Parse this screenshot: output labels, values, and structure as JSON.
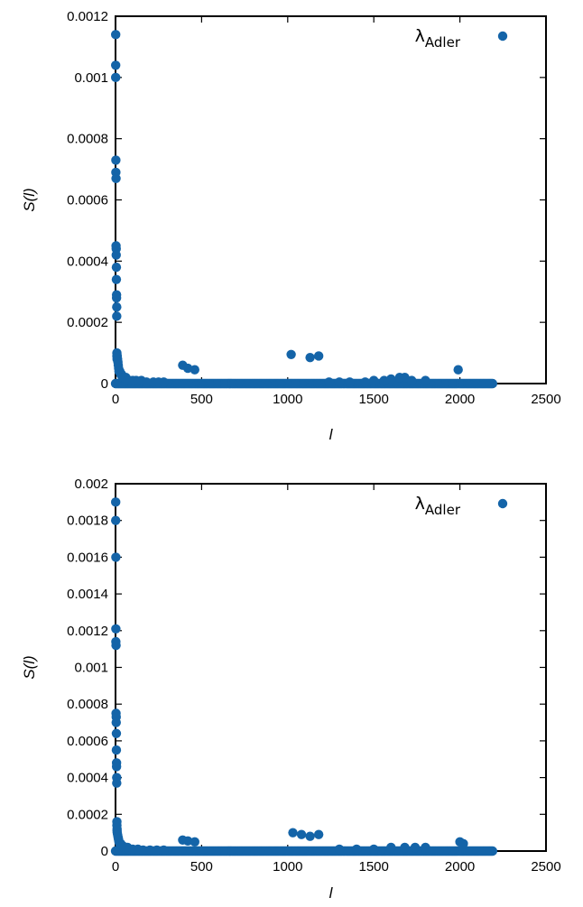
{
  "chart_data": [
    {
      "type": "scatter",
      "xlabel": "l",
      "ylabel": "S(l)",
      "xlim": [
        0,
        2500
      ],
      "ylim": [
        0,
        0.0012
      ],
      "xticks": [
        0,
        500,
        1000,
        1500,
        2000,
        2500
      ],
      "yticks": [
        0,
        0.0002,
        0.0004,
        0.0006,
        0.0008,
        0.001,
        0.0012
      ],
      "grid": false,
      "legend": "top-right",
      "color": "#1464a8",
      "series": [
        {
          "name": "λ_Adler",
          "legend_main": "λ",
          "legend_sub": "Adler",
          "peaks": {
            "x": [
              1,
              1,
              1,
              2,
              2,
              3,
              3,
              4,
              4,
              5,
              5,
              6,
              6,
              7,
              7,
              8,
              8,
              9,
              10,
              12,
              14,
              16,
              18,
              20,
              25,
              30,
              35,
              40,
              50,
              60,
              70,
              80,
              100,
              120,
              150,
              180,
              220,
              250,
              280,
              390,
              420,
              460,
              1020,
              1130,
              1180,
              1240,
              1300,
              1360,
              1450,
              1500,
              1560,
              1600,
              1650,
              1680,
              1720,
              1800,
              1990
            ],
            "y": [
              0.00114,
              0.00104,
              0.001,
              0.00073,
              0.00069,
              0.00067,
              0.00045,
              0.00044,
              0.00042,
              0.00038,
              0.00034,
              0.00029,
              0.00028,
              0.00025,
              0.00022,
              0.0001,
              9e-05,
              8e-05,
              9e-05,
              8e-05,
              7e-05,
              6e-05,
              5e-05,
              4e-05,
              4e-05,
              3e-05,
              3e-05,
              2e-05,
              2e-05,
              2e-05,
              1e-05,
              1e-05,
              1e-05,
              1e-05,
              1e-05,
              5e-06,
              5e-06,
              5e-06,
              5e-06,
              6e-05,
              5e-05,
              4.5e-05,
              9.5e-05,
              8.5e-05,
              9e-05,
              5e-06,
              5e-06,
              5e-06,
              5e-06,
              1e-05,
              1e-05,
              1.5e-05,
              2e-05,
              2e-05,
              1e-05,
              1e-05,
              4.5e-05
            ]
          },
          "baseline": {
            "y": 0,
            "x_range": [
              0,
              2190
            ]
          }
        }
      ]
    },
    {
      "type": "scatter",
      "xlabel": "l",
      "ylabel": "S(l)",
      "xlim": [
        0,
        2500
      ],
      "ylim": [
        0,
        0.002
      ],
      "xticks": [
        0,
        500,
        1000,
        1500,
        2000,
        2500
      ],
      "yticks": [
        0,
        0.0002,
        0.0004,
        0.0006,
        0.0008,
        0.001,
        0.0012,
        0.0014,
        0.0016,
        0.0018,
        0.002
      ],
      "grid": false,
      "legend": "top-right",
      "color": "#1464a8",
      "series": [
        {
          "name": "λ_Adler",
          "legend_main": "λ",
          "legend_sub": "Adler",
          "peaks": {
            "x": [
              1,
              1,
              2,
              2,
              2,
              3,
              3,
              4,
              4,
              5,
              5,
              6,
              6,
              7,
              7,
              8,
              8,
              9,
              9,
              10,
              12,
              14,
              16,
              18,
              20,
              25,
              30,
              35,
              40,
              50,
              60,
              70,
              80,
              100,
              130,
              160,
              200,
              240,
              280,
              390,
              420,
              460,
              1030,
              1080,
              1130,
              1180,
              1300,
              1400,
              1500,
              1600,
              1680,
              1740,
              1800,
              2000,
              2020
            ],
            "y": [
              0.0019,
              0.0018,
              0.0016,
              0.00121,
              0.00114,
              0.00112,
              0.00075,
              0.00073,
              0.0007,
              0.00064,
              0.00055,
              0.00048,
              0.00046,
              0.0004,
              0.00037,
              0.00016,
              0.00014,
              0.00012,
              0.00011,
              0.0001,
              9e-05,
              8e-05,
              7e-05,
              6e-05,
              5e-05,
              4e-05,
              4e-05,
              3e-05,
              3e-05,
              2e-05,
              2e-05,
              2e-05,
              1e-05,
              1e-05,
              1e-05,
              5e-06,
              5e-06,
              5e-06,
              5e-06,
              6e-05,
              5.5e-05,
              5e-05,
              0.0001,
              9e-05,
              8e-05,
              9e-05,
              1e-05,
              1e-05,
              1e-05,
              2e-05,
              2e-05,
              2e-05,
              2e-05,
              5e-05,
              4e-05
            ]
          },
          "baseline": {
            "y": 0,
            "x_range": [
              0,
              2190
            ]
          }
        }
      ]
    }
  ]
}
